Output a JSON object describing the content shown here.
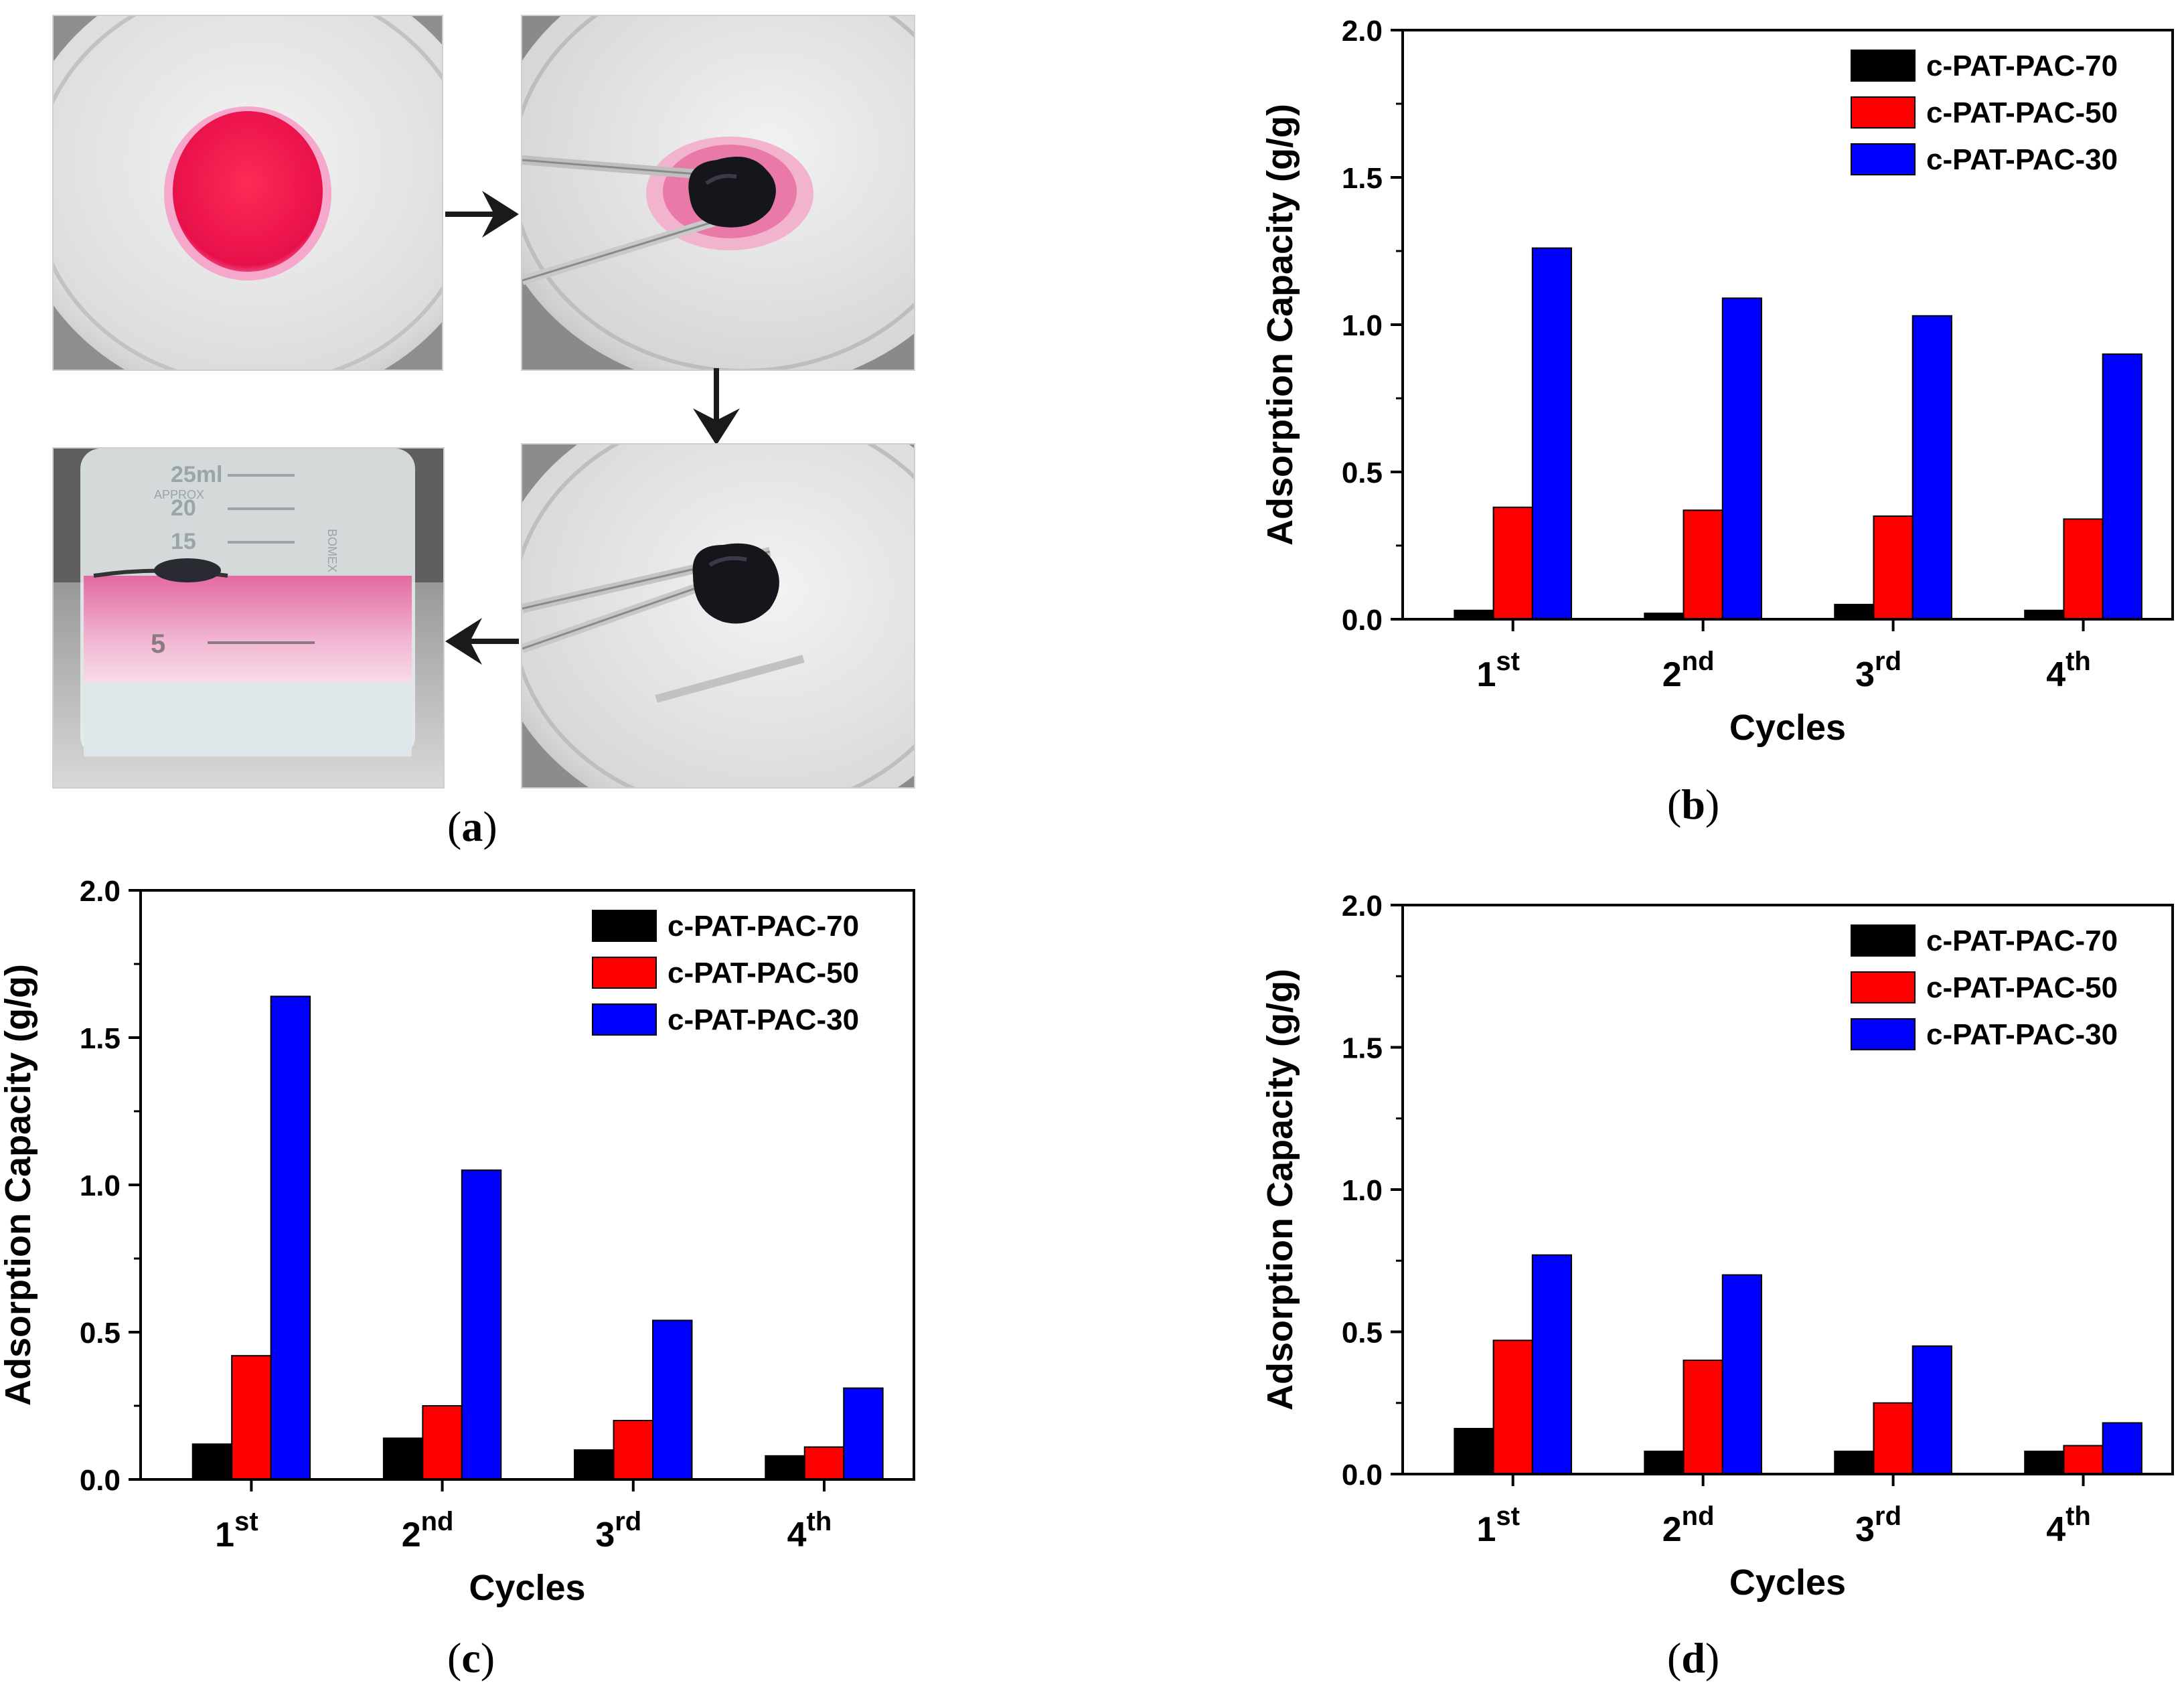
{
  "panel_labels": {
    "a": "a",
    "b": "b",
    "c": "c",
    "d": "d"
  },
  "photo_panel": {
    "beaker_marks": [
      "25ml",
      "APPROX",
      "20",
      "15",
      "5",
      "BOMEX"
    ]
  },
  "colors": {
    "c-PAT-PAC-70": "#000000",
    "c-PAT-PAC-50": "#ff0000",
    "c-PAT-PAC-30": "#0000ff"
  },
  "chart_data": [
    {
      "panel": "b",
      "type": "bar",
      "categories": [
        {
          "base": "1",
          "sup": "st"
        },
        {
          "base": "2",
          "sup": "nd"
        },
        {
          "base": "3",
          "sup": "rd"
        },
        {
          "base": "4",
          "sup": "th"
        }
      ],
      "xlabel": "Cycles",
      "ylabel": "Adsorption Capacity (g/g)",
      "ylim": [
        0,
        2.0
      ],
      "yticks": [
        "0.0",
        "0.5",
        "1.0",
        "1.5",
        "2.0"
      ],
      "legend_position": "top-right",
      "series": [
        {
          "name": "c-PAT-PAC-70",
          "color": "#000000",
          "values": [
            0.03,
            0.02,
            0.05,
            0.03
          ]
        },
        {
          "name": "c-PAT-PAC-50",
          "color": "#ff0000",
          "values": [
            0.38,
            0.37,
            0.35,
            0.34
          ]
        },
        {
          "name": "c-PAT-PAC-30",
          "color": "#0000ff",
          "values": [
            1.26,
            1.09,
            1.03,
            0.9
          ]
        }
      ]
    },
    {
      "panel": "c",
      "type": "bar",
      "categories": [
        {
          "base": "1",
          "sup": "st"
        },
        {
          "base": "2",
          "sup": "nd"
        },
        {
          "base": "3",
          "sup": "rd"
        },
        {
          "base": "4",
          "sup": "th"
        }
      ],
      "xlabel": "Cycles",
      "ylabel": "Adsorption Capacity (g/g)",
      "ylim": [
        0,
        2.0
      ],
      "yticks": [
        "0.0",
        "0.5",
        "1.0",
        "1.5",
        "2.0"
      ],
      "legend_position": "top-right",
      "series": [
        {
          "name": "c-PAT-PAC-70",
          "color": "#000000",
          "values": [
            0.12,
            0.14,
            0.1,
            0.08
          ]
        },
        {
          "name": "c-PAT-PAC-50",
          "color": "#ff0000",
          "values": [
            0.42,
            0.25,
            0.2,
            0.11
          ]
        },
        {
          "name": "c-PAT-PAC-30",
          "color": "#0000ff",
          "values": [
            1.64,
            1.05,
            0.54,
            0.31
          ]
        }
      ]
    },
    {
      "panel": "d",
      "type": "bar",
      "categories": [
        {
          "base": "1",
          "sup": "st"
        },
        {
          "base": "2",
          "sup": "nd"
        },
        {
          "base": "3",
          "sup": "rd"
        },
        {
          "base": "4",
          "sup": "th"
        }
      ],
      "xlabel": "Cycles",
      "ylabel": "Adsorption  Capacity (g/g)",
      "ylim": [
        0,
        2.0
      ],
      "yticks": [
        "0.0",
        "0.5",
        "1.0",
        "1.5",
        "2.0"
      ],
      "legend_position": "top-right",
      "series": [
        {
          "name": "c-PAT-PAC-70",
          "color": "#000000",
          "values": [
            0.16,
            0.08,
            0.08,
            0.08
          ]
        },
        {
          "name": "c-PAT-PAC-50",
          "color": "#ff0000",
          "values": [
            0.47,
            0.4,
            0.25,
            0.1
          ]
        },
        {
          "name": "c-PAT-PAC-30",
          "color": "#0000ff",
          "values": [
            0.77,
            0.7,
            0.45,
            0.18
          ]
        }
      ]
    }
  ]
}
